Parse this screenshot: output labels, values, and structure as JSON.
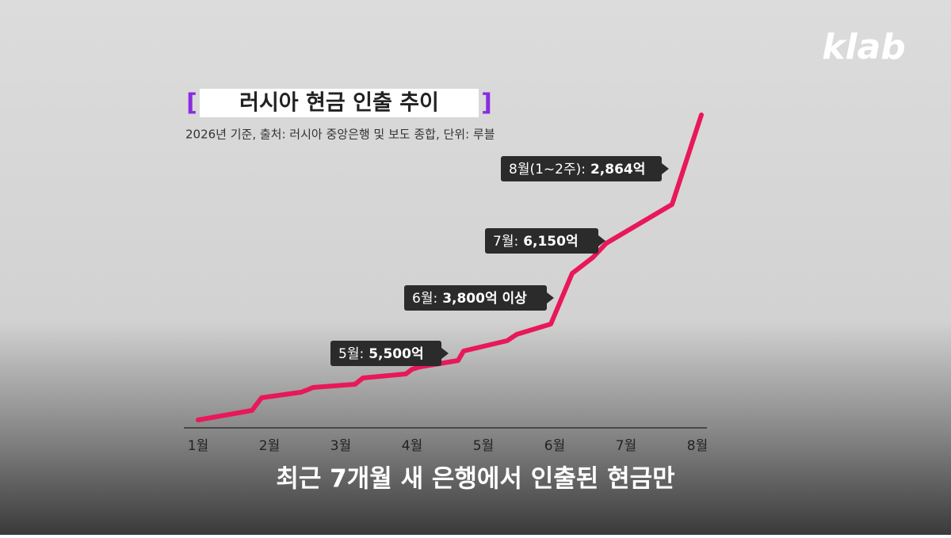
{
  "chart_data": {
    "type": "line",
    "logo": "klab",
    "title_open": "[",
    "title": "러시아 현금 인출 추이",
    "title_close": "]",
    "subtitle": "2026년 기준, 출처: 러시아 중앙은행 및 보도 종합, 단위: 루블",
    "categories": [
      "1월",
      "2월",
      "3월",
      "4월",
      "5월",
      "6월",
      "7월",
      "8월"
    ],
    "annotations": [
      {
        "month": "5월:",
        "text": "5,500억"
      },
      {
        "month": "6월:",
        "text": "3,800억 이상"
      },
      {
        "month": "7월:",
        "text": "6,150억"
      },
      {
        "month": "8월(1~2주):",
        "text": "2,864억"
      }
    ],
    "color": "#e8185a",
    "caption": "최근 7개월 새 은행에서 인출된 현금만"
  }
}
